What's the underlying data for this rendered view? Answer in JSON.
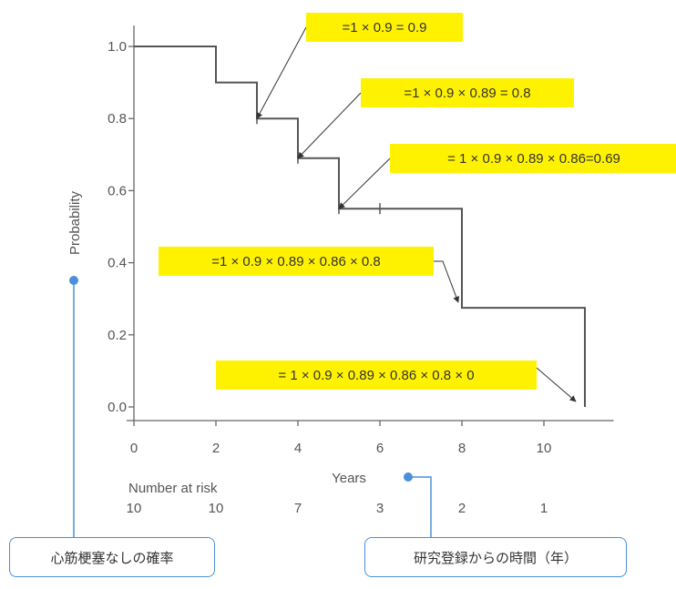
{
  "chart_data": {
    "type": "line",
    "subtype": "kaplan-meier step",
    "xlabel": "Years",
    "ylabel": "Probability",
    "xlim": [
      0,
      11.5
    ],
    "ylim": [
      0,
      1.0
    ],
    "x_ticks": [
      "0",
      "2",
      "4",
      "6",
      "8",
      "10"
    ],
    "y_ticks": [
      "0.0",
      "0.2",
      "0.4",
      "0.6",
      "0.8",
      "1.0"
    ],
    "grid": false,
    "step_points": [
      {
        "x": 0,
        "y": 1.0
      },
      {
        "x": 2,
        "y": 0.9
      },
      {
        "x": 3,
        "y": 0.8
      },
      {
        "x": 4,
        "y": 0.69
      },
      {
        "x": 5,
        "y": 0.55
      },
      {
        "x": 8,
        "y": 0.275
      },
      {
        "x": 11,
        "y": 0.0
      }
    ],
    "censor_marks": [
      {
        "x": 3,
        "y": 0.8
      },
      {
        "x": 4,
        "y": 0.69
      },
      {
        "x": 5,
        "y": 0.55
      },
      {
        "x": 6,
        "y": 0.55
      }
    ],
    "annotations": [
      {
        "text": "=1 × 0.9 = 0.9",
        "x": 3,
        "y": 0.8
      },
      {
        "text": "=1 × 0.9 × 0.89 = 0.8",
        "x": 4,
        "y": 0.69
      },
      {
        "text": "= 1 × 0.9 × 0.89 × 0.86=0.69",
        "x": 5,
        "y": 0.55
      },
      {
        "text": "=1 × 0.9 × 0.89 × 0.86 × 0.8",
        "x": 8,
        "y": 0.275
      },
      {
        "text": "= 1 × 0.9 × 0.89 × 0.86 × 0.8 × 0",
        "x": 11,
        "y": 0.0
      }
    ],
    "risk_table": {
      "title": "Number at risk",
      "values": [
        "10",
        "10",
        "7",
        "3",
        "2",
        "1"
      ]
    }
  },
  "callouts": {
    "probability_note": "心筋梗塞なしの確率",
    "years_note": "研究登録からの時間（年）"
  },
  "colors": {
    "annotation_bg": "#fff200",
    "callout_border": "#4a90d9",
    "line": "#555555"
  }
}
